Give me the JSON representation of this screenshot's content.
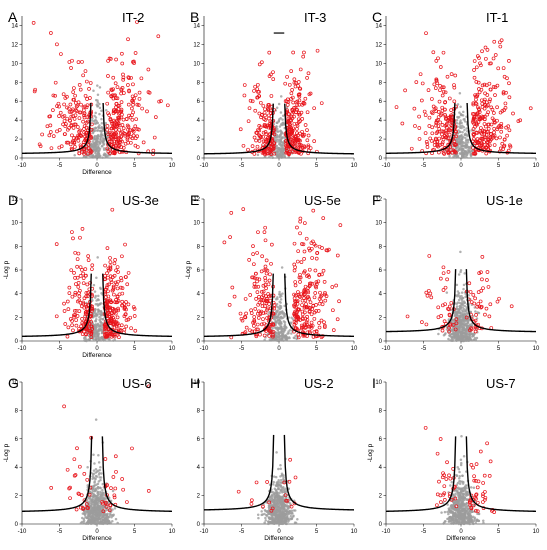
{
  "chart_data": [
    {
      "type": "scatter",
      "letter": "A",
      "title": "IT-2",
      "xlabel": "Difference",
      "ylabel": "",
      "xlim": [
        -10,
        10
      ],
      "ylim": [
        0,
        15
      ],
      "xticks": [
        -10,
        -5,
        0,
        5,
        10
      ],
      "yticks": [
        0,
        2,
        4,
        6,
        8,
        10,
        12,
        14
      ],
      "series_names": [],
      "cutoff_asym": 0.3,
      "cutoff_width": 0.65,
      "cutoff_scale": 0.4,
      "top_box": false,
      "red_count": 420,
      "gray_count": 260,
      "red_spread_x": 2.6,
      "red_spread_y": 3.2,
      "red_bias": 0.7,
      "point_colors": {
        "significant": "#e8141b",
        "nonsignificant": "#9c9c9c",
        "line": "#000000"
      },
      "cutoff_line_width": 1.4,
      "tick_color": "#000000"
    },
    {
      "type": "scatter",
      "letter": "B",
      "title": "IT-3",
      "xlabel": "",
      "ylabel": "",
      "xlim": [
        -10,
        10
      ],
      "ylim": [
        0,
        15
      ],
      "xticks": [
        -10,
        -5,
        0,
        5,
        10
      ],
      "yticks": [
        0,
        2,
        4,
        6,
        8,
        10,
        12,
        14
      ],
      "series_names": [],
      "cutoff_asym": 0.0,
      "cutoff_width": 0.6,
      "cutoff_scale": 0.35,
      "top_box": true,
      "red_count": 380,
      "gray_count": 240,
      "red_spread_x": 1.6,
      "red_spread_y": 2.8,
      "red_bias": 0.2,
      "point_colors": {
        "significant": "#e8141b",
        "nonsignificant": "#9c9c9c",
        "line": "#000000"
      },
      "cutoff_line_width": 1.4,
      "tick_color": "#000000"
    },
    {
      "type": "scatter",
      "letter": "C",
      "title": "IT-1",
      "xlabel": "",
      "ylabel": "",
      "xlim": [
        -10,
        10
      ],
      "ylim": [
        0,
        15
      ],
      "xticks": [
        -10,
        -5,
        0,
        5,
        10
      ],
      "yticks": [
        0,
        2,
        4,
        6,
        8,
        10,
        12,
        14
      ],
      "series_names": [],
      "cutoff_asym": 0.0,
      "cutoff_width": 0.65,
      "cutoff_scale": 0.4,
      "top_box": false,
      "red_count": 420,
      "gray_count": 260,
      "red_spread_x": 2.4,
      "red_spread_y": 3.1,
      "red_bias": 0.9,
      "point_colors": {
        "significant": "#e8141b",
        "nonsignificant": "#9c9c9c",
        "line": "#000000"
      },
      "cutoff_line_width": 1.4,
      "tick_color": "#000000"
    },
    {
      "type": "scatter",
      "letter": "D",
      "title": "US-3e",
      "xlabel": "Difference",
      "ylabel": "-Log p",
      "xlim": [
        -10,
        10
      ],
      "ylim": [
        0,
        12
      ],
      "xticks": [
        -10,
        -5,
        0,
        5,
        10
      ],
      "yticks": [
        0,
        2,
        4,
        6,
        8,
        10,
        12
      ],
      "series_names": [],
      "cutoff_asym": 0.0,
      "cutoff_width": 0.6,
      "cutoff_scale": 0.3,
      "top_box": false,
      "red_count": 360,
      "gray_count": 260,
      "red_spread_x": 1.5,
      "red_spread_y": 2.6,
      "red_bias": 0.4,
      "point_colors": {
        "significant": "#e8141b",
        "nonsignificant": "#9c9c9c",
        "line": "#000000"
      },
      "cutoff_line_width": 1.4,
      "tick_color": "#000000"
    },
    {
      "type": "scatter",
      "letter": "E",
      "title": "US-5e",
      "xlabel": "",
      "ylabel": "-Log p",
      "xlim": [
        -10,
        10
      ],
      "ylim": [
        0,
        12
      ],
      "xticks": [
        -10,
        -5,
        0,
        5,
        10
      ],
      "yticks": [
        0,
        2,
        4,
        6,
        8,
        10,
        12
      ],
      "series_names": [],
      "cutoff_asym": 0.0,
      "cutoff_width": 0.6,
      "cutoff_scale": 0.3,
      "top_box": false,
      "red_count": 380,
      "gray_count": 260,
      "red_spread_x": 2.4,
      "red_spread_y": 2.7,
      "red_bias": 1.4,
      "point_colors": {
        "significant": "#e8141b",
        "nonsignificant": "#9c9c9c",
        "line": "#000000"
      },
      "cutoff_line_width": 1.4,
      "tick_color": "#000000"
    },
    {
      "type": "scatter",
      "letter": "F",
      "title": "US-1e",
      "xlabel": "",
      "ylabel": "",
      "xlim": [
        -10,
        10
      ],
      "ylim": [
        0,
        12
      ],
      "xticks": [
        -10,
        -5,
        0,
        5,
        10
      ],
      "yticks": [
        0,
        2,
        4,
        6,
        8,
        10,
        12
      ],
      "series_names": [],
      "cutoff_asym": 0.0,
      "cutoff_width": 0.55,
      "cutoff_scale": 0.7,
      "top_box": false,
      "red_count": 90,
      "gray_count": 520,
      "red_spread_x": 2.2,
      "red_spread_y": 2.1,
      "red_bias": 0.2,
      "point_colors": {
        "significant": "#e8141b",
        "nonsignificant": "#9c9c9c",
        "line": "#000000"
      },
      "cutoff_line_width": 1.4,
      "tick_color": "#000000"
    },
    {
      "type": "scatter",
      "letter": "G",
      "title": "US-6",
      "xlabel": "Difference",
      "ylabel": "-Log p",
      "xlim": [
        -10,
        10
      ],
      "ylim": [
        0,
        10
      ],
      "xticks": [
        -10,
        -5,
        0,
        5,
        10
      ],
      "yticks": [
        0,
        2,
        4,
        6,
        8,
        10
      ],
      "series_names": [],
      "cutoff_asym": 0.0,
      "cutoff_width": 0.55,
      "cutoff_scale": 0.8,
      "top_box": false,
      "red_count": 55,
      "gray_count": 560,
      "red_spread_x": 2.6,
      "red_spread_y": 1.8,
      "red_bias": 0.0,
      "point_colors": {
        "significant": "#e8141b",
        "nonsignificant": "#9c9c9c",
        "line": "#000000"
      },
      "cutoff_line_width": 1.4,
      "tick_color": "#000000"
    },
    {
      "type": "scatter",
      "letter": "H",
      "title": "US-2",
      "xlabel": "Difference",
      "ylabel": "",
      "xlim": [
        -10,
        10
      ],
      "ylim": [
        0,
        10
      ],
      "xticks": [
        -10,
        -5,
        0,
        5,
        10
      ],
      "yticks": [
        0,
        2,
        4,
        6,
        8,
        10
      ],
      "series_names": [],
      "cutoff_asym": 0.0,
      "cutoff_width": 0.55,
      "cutoff_scale": 0.9,
      "top_box": false,
      "red_count": 18,
      "gray_count": 580,
      "red_spread_x": 1.8,
      "red_spread_y": 1.2,
      "red_bias": 0.0,
      "point_colors": {
        "significant": "#e8141b",
        "nonsignificant": "#9c9c9c",
        "line": "#000000"
      },
      "cutoff_line_width": 1.4,
      "tick_color": "#000000"
    },
    {
      "type": "scatter",
      "letter": "I",
      "title": "US-7",
      "xlabel": "Difference",
      "ylabel": "-Log p",
      "xlim": [
        -10,
        10
      ],
      "ylim": [
        0,
        10
      ],
      "xticks": [
        -10,
        -5,
        0,
        5,
        10
      ],
      "yticks": [
        0,
        2,
        4,
        6,
        8,
        10
      ],
      "series_names": [],
      "cutoff_asym": 0.0,
      "cutoff_width": 0.55,
      "cutoff_scale": 0.8,
      "top_box": false,
      "red_count": 70,
      "gray_count": 540,
      "red_spread_x": 2.0,
      "red_spread_y": 1.9,
      "red_bias": 0.6,
      "point_colors": {
        "significant": "#e8141b",
        "nonsignificant": "#9c9c9c",
        "line": "#000000"
      },
      "cutoff_line_width": 1.4,
      "tick_color": "#000000"
    }
  ]
}
